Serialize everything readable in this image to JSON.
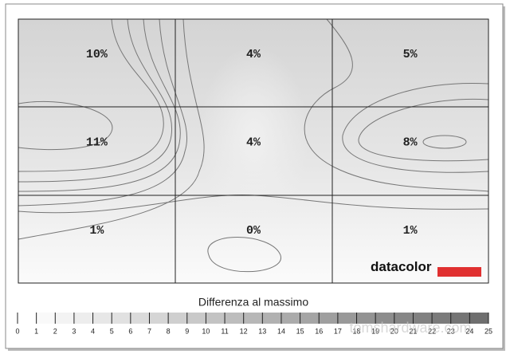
{
  "chart_data": {
    "type": "uniformity",
    "values": [
      [
        10,
        4,
        5
      ],
      [
        11,
        4,
        8
      ],
      [
        1,
        0,
        1
      ]
    ],
    "value_labels": [
      [
        "10%",
        "4%",
        "5%"
      ],
      [
        "11%",
        "4%",
        "8%"
      ],
      [
        "1%",
        "0%",
        "1%"
      ]
    ],
    "logo": "datacolor",
    "colorbar": {
      "label": "Differenza al massimo",
      "lim": [
        0,
        25
      ],
      "ticks": [
        0,
        1,
        2,
        3,
        4,
        5,
        6,
        7,
        8,
        9,
        10,
        11,
        12,
        13,
        14,
        15,
        16,
        17,
        18,
        19,
        20,
        21,
        22,
        23,
        24,
        25
      ]
    },
    "watermark": "tomshardware.com"
  }
}
